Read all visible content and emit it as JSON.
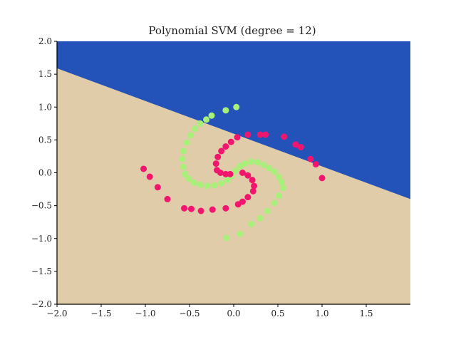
{
  "chart_data": {
    "type": "scatter",
    "title": "Polynomial SVM (degree = 12)",
    "xlabel": "",
    "ylabel": "",
    "xlim": [
      -2.0,
      2.0
    ],
    "ylim": [
      -2.0,
      2.0
    ],
    "xticks": [
      "-2.0",
      "-1.5",
      "-1.0",
      "-0.5",
      "0.0",
      "0.5",
      "1.0",
      "1.5"
    ],
    "yticks": [
      "2.0",
      "1.5",
      "1.0",
      "0.5",
      "0.0",
      "-0.5",
      "-1.0",
      "-1.5",
      "-2.0"
    ],
    "grid": false,
    "legend": null,
    "decision_regions": {
      "upper_color": "#2352b8",
      "lower_color": "#e0cca8",
      "boundary_line": [
        [
          -2.0,
          1.59
        ],
        [
          2.0,
          -0.4
        ]
      ]
    },
    "series": [
      {
        "name": "class_green",
        "color": "#a8f07a",
        "points": [
          [
            0.03,
            1.0
          ],
          [
            -0.09,
            0.95
          ],
          [
            -0.25,
            0.87
          ],
          [
            -0.31,
            0.81
          ],
          [
            -0.38,
            0.75
          ],
          [
            -0.44,
            0.67
          ],
          [
            -0.49,
            0.57
          ],
          [
            -0.53,
            0.46
          ],
          [
            -0.57,
            0.33
          ],
          [
            -0.58,
            0.21
          ],
          [
            -0.57,
            0.09
          ],
          [
            -0.55,
            -0.02
          ],
          [
            -0.51,
            -0.09
          ],
          [
            -0.45,
            -0.15
          ],
          [
            -0.38,
            -0.18
          ],
          [
            -0.3,
            -0.2
          ],
          [
            -0.22,
            -0.19
          ],
          [
            -0.14,
            -0.16
          ],
          [
            -0.07,
            -0.11
          ],
          [
            -0.02,
            -0.05
          ],
          [
            0.02,
            0.03
          ],
          [
            0.07,
            0.1
          ],
          [
            0.13,
            0.14
          ],
          [
            0.2,
            0.17
          ],
          [
            0.27,
            0.16
          ],
          [
            0.34,
            0.12
          ],
          [
            0.4,
            0.07
          ],
          [
            0.46,
            0.02
          ],
          [
            0.51,
            -0.06
          ],
          [
            0.54,
            -0.14
          ],
          [
            0.56,
            -0.23
          ],
          [
            0.51,
            -0.35
          ],
          [
            0.46,
            -0.46
          ],
          [
            0.38,
            -0.58
          ],
          [
            0.3,
            -0.69
          ],
          [
            0.2,
            -0.78
          ],
          [
            0.07,
            -0.93
          ],
          [
            -0.08,
            -0.99
          ]
        ]
      },
      {
        "name": "class_pink",
        "color": "#f0166e",
        "points": [
          [
            1.0,
            -0.08
          ],
          [
            0.93,
            0.13
          ],
          [
            0.87,
            0.21
          ],
          [
            0.76,
            0.39
          ],
          [
            0.7,
            0.43
          ],
          [
            0.57,
            0.55
          ],
          [
            0.36,
            0.58
          ],
          [
            0.3,
            0.58
          ],
          [
            0.16,
            0.58
          ],
          [
            0.04,
            0.54
          ],
          [
            -0.03,
            0.47
          ],
          [
            -0.09,
            0.4
          ],
          [
            -0.14,
            0.33
          ],
          [
            -0.18,
            0.24
          ],
          [
            -0.2,
            0.14
          ],
          [
            -0.19,
            0.04
          ],
          [
            -0.15,
            0.0
          ],
          [
            -0.09,
            -0.02
          ],
          [
            -0.04,
            -0.02
          ],
          [
            0.1,
            0.0
          ],
          [
            0.16,
            -0.04
          ],
          [
            0.21,
            -0.11
          ],
          [
            0.23,
            -0.2
          ],
          [
            0.22,
            -0.28
          ],
          [
            0.16,
            -0.37
          ],
          [
            0.1,
            -0.44
          ],
          [
            0.05,
            -0.48
          ],
          [
            -0.09,
            -0.54
          ],
          [
            -0.24,
            -0.56
          ],
          [
            -0.37,
            -0.58
          ],
          [
            -0.48,
            -0.55
          ],
          [
            -0.56,
            -0.54
          ],
          [
            -0.75,
            -0.4
          ],
          [
            -0.86,
            -0.22
          ],
          [
            -0.95,
            -0.06
          ],
          [
            -1.02,
            0.06
          ]
        ]
      }
    ]
  }
}
